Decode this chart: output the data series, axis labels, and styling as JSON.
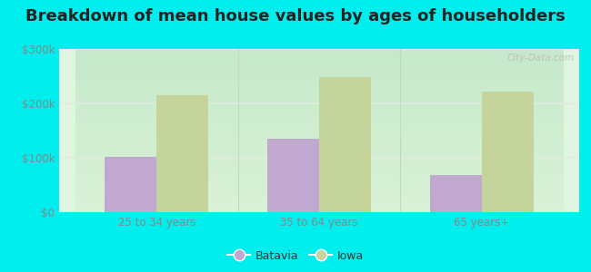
{
  "title": "Breakdown of mean house values by ages of householders",
  "categories": [
    "25 to 34 years",
    "35 to 64 years",
    "65 years+"
  ],
  "batavia_values": [
    102000,
    135000,
    68000
  ],
  "iowa_values": [
    215000,
    248000,
    222000
  ],
  "ylim": [
    0,
    300000
  ],
  "yticks": [
    0,
    100000,
    200000,
    300000
  ],
  "ytick_labels": [
    "$0",
    "$100k",
    "$200k",
    "$300k"
  ],
  "batavia_color": "#c0a8d0",
  "iowa_color": "#c5d49a",
  "plot_bg_top": "#f0faf0",
  "plot_bg_bottom": "#e0f5e0",
  "outer_background": "#00eeee",
  "grid_color": "#e0ece0",
  "bar_width": 0.32,
  "title_fontsize": 13,
  "tick_label_color": "#888888",
  "legend_labels": [
    "Batavia",
    "Iowa"
  ],
  "watermark": "City-Data.com"
}
